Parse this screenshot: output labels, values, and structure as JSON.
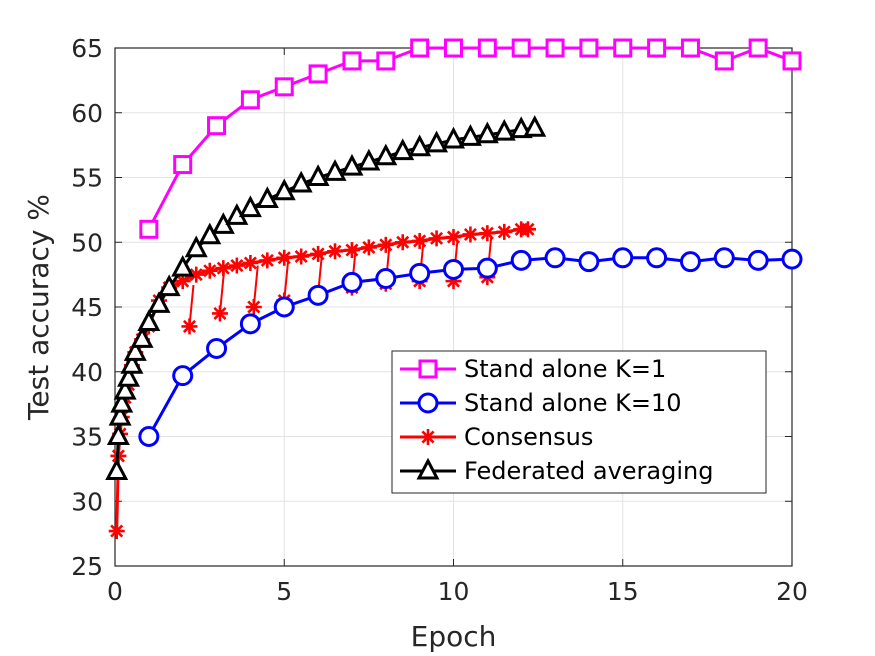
{
  "chart_data": {
    "type": "line",
    "title": "",
    "xlabel": "Epoch",
    "ylabel": "Test accuracy %",
    "xlim": [
      0,
      20
    ],
    "ylim": [
      25,
      65
    ],
    "xticks": [
      0,
      5,
      10,
      15,
      20
    ],
    "yticks": [
      25,
      30,
      35,
      40,
      45,
      50,
      55,
      60,
      65
    ],
    "grid": true,
    "legend_position": "bottom-right",
    "series": [
      {
        "name": "Stand alone K=1",
        "color": "#ff00ff",
        "marker": "square",
        "x": [
          1,
          2,
          3,
          4,
          5,
          6,
          7,
          8,
          9,
          10,
          11,
          12,
          13,
          14,
          15,
          16,
          17,
          18,
          19,
          20
        ],
        "y": [
          51,
          56,
          59,
          61,
          62,
          63,
          64,
          64,
          65,
          65,
          65,
          65,
          65,
          65,
          65,
          65,
          65,
          64,
          65,
          64
        ]
      },
      {
        "name": "Stand alone K=10",
        "color": "#0000ff",
        "marker": "circle",
        "x": [
          1,
          2,
          3,
          4,
          5,
          6,
          7,
          8,
          9,
          10,
          11,
          12,
          13,
          14,
          15,
          16,
          17,
          18,
          19,
          20
        ],
        "y": [
          35,
          39.7,
          41.8,
          43.7,
          45,
          45.9,
          46.9,
          47.2,
          47.6,
          47.9,
          48,
          48.6,
          48.8,
          48.5,
          48.8,
          48.8,
          48.5,
          48.8,
          48.6,
          48.7
        ]
      },
      {
        "name": "Consensus",
        "color": "#ff0000",
        "marker": "asterisk",
        "x": [
          0.05,
          0.1,
          0.15,
          0.2,
          0.3,
          0.4,
          0.5,
          0.6,
          0.8,
          1.0,
          1.3,
          1.6,
          2.0,
          2.4,
          2.8,
          3.2,
          3.6,
          4.0,
          4.5,
          5.0,
          5.5,
          6.0,
          6.5,
          7.0,
          7.5,
          8.0,
          8.5,
          9.0,
          9.5,
          10.0,
          10.5,
          11.0,
          11.5,
          12.0,
          12.2
        ],
        "y": [
          27.7,
          33.5,
          35.2,
          36.5,
          38,
          39,
          40.5,
          41.5,
          42.5,
          43.5,
          45.5,
          46.5,
          47,
          47.5,
          47.8,
          48,
          48.2,
          48.4,
          48.6,
          48.8,
          48.9,
          49.1,
          49.3,
          49.4,
          49.6,
          49.8,
          50,
          50.1,
          50.3,
          50.4,
          50.6,
          50.7,
          50.8,
          51,
          51
        ]
      },
      {
        "name": "Federated averaging",
        "color": "#000000",
        "marker": "triangle",
        "x": [
          0.05,
          0.1,
          0.15,
          0.2,
          0.3,
          0.4,
          0.5,
          0.6,
          0.8,
          1.0,
          1.3,
          1.6,
          2.0,
          2.4,
          2.8,
          3.2,
          3.6,
          4.0,
          4.5,
          5.0,
          5.5,
          6.0,
          6.5,
          7.0,
          7.5,
          8.0,
          8.5,
          9.0,
          9.5,
          10.0,
          10.5,
          11.0,
          11.5,
          12.0,
          12.4
        ],
        "y": [
          32.3,
          35,
          36.5,
          37.5,
          38.5,
          39.5,
          40.5,
          41.5,
          42.5,
          43.8,
          45.2,
          46.5,
          48,
          49.5,
          50.5,
          51.3,
          52,
          52.6,
          53.3,
          53.9,
          54.5,
          55,
          55.4,
          55.8,
          56.2,
          56.6,
          57,
          57.3,
          57.6,
          57.9,
          58.1,
          58.3,
          58.5,
          58.7,
          58.8
        ]
      }
    ],
    "scatter_overlays": {
      "Consensus": {
        "note": "dips",
        "x": [
          2.2,
          3.1,
          4.1,
          5.0,
          6.0,
          7.0,
          8.0,
          9.0,
          10.0,
          11.0
        ],
        "y": [
          43.5,
          44.5,
          45,
          45.5,
          46,
          46.5,
          46.8,
          47,
          47,
          47.3
        ]
      }
    }
  }
}
